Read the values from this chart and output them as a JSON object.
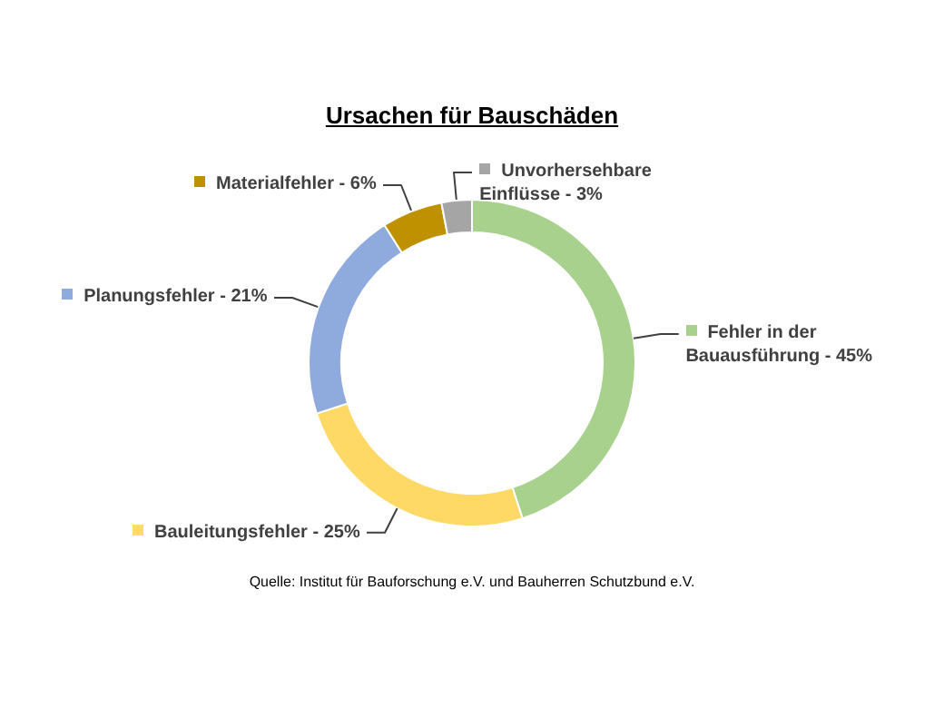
{
  "chart_data": {
    "type": "donut",
    "title": "Ursachen für Bauschäden",
    "categories": [
      "Fehler in der Bauausführung -",
      "Bauleitungsfehler -",
      "Planungsfehler -",
      "Materialfehler -",
      "Unvorhersehbare Einflüsse -"
    ],
    "values": [
      45,
      25,
      21,
      6,
      3
    ],
    "value_labels": [
      "45%",
      "25%",
      "21%",
      "6%",
      "3%"
    ],
    "legend": true,
    "colors": [
      "#a9d18e",
      "#ffd966",
      "#8faadc",
      "#bf9000",
      "#a5a5a5"
    ],
    "annotations": [
      "Quelle: Institut für Bauforschung e.V. und Bauherren Schutzbund e.V."
    ]
  }
}
